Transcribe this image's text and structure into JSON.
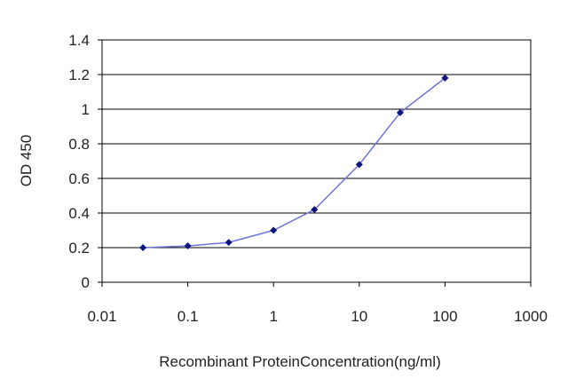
{
  "chart_data": {
    "type": "line",
    "title": "",
    "xlabel": "Recombinant ProteinConcentration(ng/ml)",
    "ylabel": "OD 450",
    "x_scale": "log",
    "xlim": [
      0.01,
      1000
    ],
    "ylim": [
      0,
      1.4
    ],
    "x_ticks": [
      "0.01",
      "0.1",
      "1",
      "10",
      "100",
      "1000"
    ],
    "y_ticks": [
      "0",
      "0.2",
      "0.4",
      "0.6",
      "0.8",
      "1",
      "1.2",
      "1.4"
    ],
    "grid": "horizontal",
    "legend": "none",
    "series": [
      {
        "x": [
          0.03,
          0.1,
          0.3,
          1,
          3,
          10,
          30,
          100
        ],
        "y": [
          0.2,
          0.21,
          0.23,
          0.3,
          0.42,
          0.68,
          0.98,
          1.18
        ],
        "line_color": "#6f74d6",
        "marker_color": "#0d1480"
      }
    ]
  }
}
